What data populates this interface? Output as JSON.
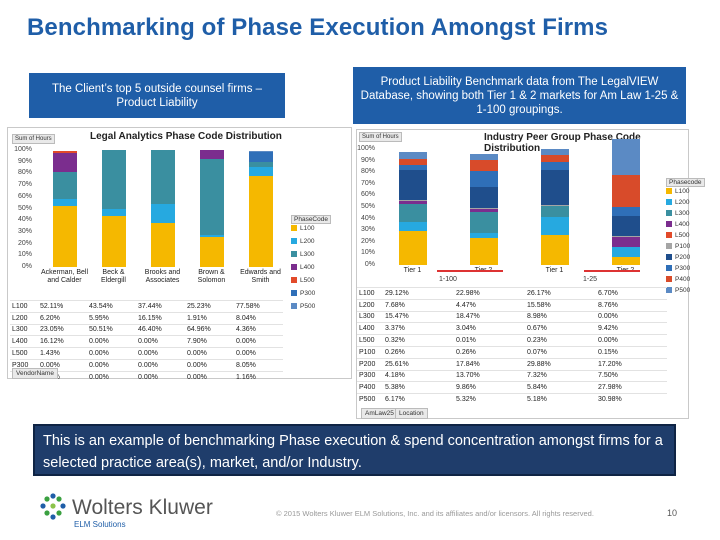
{
  "slide": {
    "title": "Benchmarking of Phase Execution Amongst Firms",
    "left_header": "The Client’s top 5 outside counsel firms – Product Liability",
    "right_header": "Product Liability Benchmark data from The LegalVIEW Database, showing both Tier 1 & 2 markets for Am Law 1-25 & 1-100 groupings.",
    "note": "This is an example of benchmarking Phase execution & spend concentration amongst firms for a selected practice area(s), market, and/or Industry.",
    "logo_name": "Wolters Kluwer",
    "logo_sub": "ELM Solutions",
    "footer": "© 2015 Wolters Kluwer ELM Solutions, Inc. and its affiliates and/or licensors. All rights reserved.",
    "page_number": "10"
  },
  "colors": {
    "L100": "#f5b800",
    "L200": "#26a9e0",
    "L300": "#3a8fa0",
    "L400": "#7b2d8e",
    "L500": "#d84b2a",
    "P300": "#1f4e8c",
    "P500": "#5b8ac4",
    "P200": "#c8c8c8"
  },
  "chart_data": [
    {
      "type": "bar",
      "title": "Legal Analytics Phase Code Distribution",
      "ylabel": "Sum of Hours",
      "ylim": [
        0,
        100
      ],
      "yticks": [
        "100%",
        "90%",
        "80%",
        "70%",
        "60%",
        "50%",
        "40%",
        "30%",
        "20%",
        "10%",
        "0%"
      ],
      "categories": [
        "Ackerman, Bell and Calder",
        "Beck & Eldergill",
        "Brooks and Associates",
        "Brown & Solomon",
        "Edwards and Smith"
      ],
      "legend_title": "PhaseCode",
      "series": [
        {
          "name": "L100",
          "values": [
            52.11,
            43.54,
            37.44,
            25.23,
            77.58
          ],
          "labels": [
            "52.11%",
            "43.54%",
            "37.44%",
            "25.23%",
            "77.58%"
          ]
        },
        {
          "name": "L200",
          "values": [
            6.2,
            5.95,
            16.15,
            1.91,
            8.04
          ],
          "labels": [
            "6.20%",
            "5.95%",
            "16.15%",
            "1.91%",
            "8.04%"
          ]
        },
        {
          "name": "L300",
          "values": [
            23.05,
            50.51,
            46.4,
            64.96,
            4.36
          ],
          "labels": [
            "23.05%",
            "50.51%",
            "46.40%",
            "64.96%",
            "4.36%"
          ]
        },
        {
          "name": "L400",
          "values": [
            16.12,
            0.0,
            0.0,
            7.9,
            0.0
          ],
          "labels": [
            "16.12%",
            "0.00%",
            "0.00%",
            "7.90%",
            "0.00%"
          ]
        },
        {
          "name": "L500",
          "values": [
            1.43,
            0.0,
            0.0,
            0.0,
            0.0
          ],
          "labels": [
            "1.43%",
            "0.00%",
            "0.00%",
            "0.00%",
            "0.00%"
          ]
        },
        {
          "name": "P300",
          "values": [
            0.0,
            0.0,
            0.0,
            0.0,
            8.05
          ],
          "labels": [
            "0.00%",
            "0.00%",
            "0.00%",
            "0.00%",
            "8.05%"
          ]
        },
        {
          "name": "P500",
          "values": [
            0.0,
            0.0,
            0.0,
            0.0,
            1.16
          ],
          "labels": [
            "0.00%",
            "0.00%",
            "0.00%",
            "0.00%",
            "1.16%"
          ]
        }
      ],
      "footer_filter": "VendorName"
    },
    {
      "type": "bar",
      "title": "Industry Peer Group Phase Code Distribution",
      "ylabel": "Sum of Hours",
      "ylim": [
        0,
        100
      ],
      "yticks": [
        "100%",
        "90%",
        "80%",
        "70%",
        "60%",
        "50%",
        "40%",
        "30%",
        "20%",
        "10%",
        "0%"
      ],
      "categories": [
        "Tier 1",
        "Tier 2",
        "Tier 1",
        "Tier 2"
      ],
      "groups": [
        "1-100",
        "1-25"
      ],
      "legend_title": "Phasecode",
      "series": [
        {
          "name": "L100",
          "values": [
            29.12,
            22.98,
            26.17,
            6.7
          ],
          "labels": [
            "29.12%",
            "22.98%",
            "26.17%",
            "6.70%"
          ]
        },
        {
          "name": "L200",
          "values": [
            7.68,
            4.47,
            15.58,
            8.76
          ],
          "labels": [
            "7.68%",
            "4.47%",
            "15.58%",
            "8.76%"
          ]
        },
        {
          "name": "L300",
          "values": [
            15.47,
            18.47,
            8.98,
            0.0
          ],
          "labels": [
            "15.47%",
            "18.47%",
            "8.98%",
            "0.00%"
          ]
        },
        {
          "name": "L400",
          "values": [
            3.37,
            3.04,
            0.67,
            9.42
          ],
          "labels": [
            "3.37%",
            "3.04%",
            "0.67%",
            "9.42%"
          ]
        },
        {
          "name": "L500",
          "values": [
            0.32,
            0.01,
            0.23,
            0.0
          ],
          "labels": [
            "0.32%",
            "0.01%",
            "0.23%",
            "0.00%"
          ]
        },
        {
          "name": "P100",
          "values": [
            0.26,
            0.26,
            0.07,
            0.15
          ],
          "labels": [
            "0.26%",
            "0.26%",
            "0.07%",
            "0.15%"
          ]
        },
        {
          "name": "P200",
          "values": [
            25.61,
            17.84,
            29.88,
            17.2
          ],
          "labels": [
            "25.61%",
            "17.84%",
            "29.88%",
            "17.20%"
          ]
        },
        {
          "name": "P300",
          "values": [
            4.18,
            13.7,
            7.32,
            7.5
          ],
          "labels": [
            "4.18%",
            "13.70%",
            "7.32%",
            "7.50%"
          ]
        },
        {
          "name": "P400",
          "values": [
            5.38,
            9.86,
            5.84,
            27.98
          ],
          "labels": [
            "5.38%",
            "9.86%",
            "5.84%",
            "27.98%"
          ]
        },
        {
          "name": "P500",
          "values": [
            6.17,
            5.32,
            5.18,
            30.98
          ],
          "labels": [
            "6.17%",
            "5.32%",
            "5.18%",
            "30.98%"
          ]
        }
      ],
      "footer_filters": [
        "AmLaw25",
        "Location"
      ]
    }
  ]
}
